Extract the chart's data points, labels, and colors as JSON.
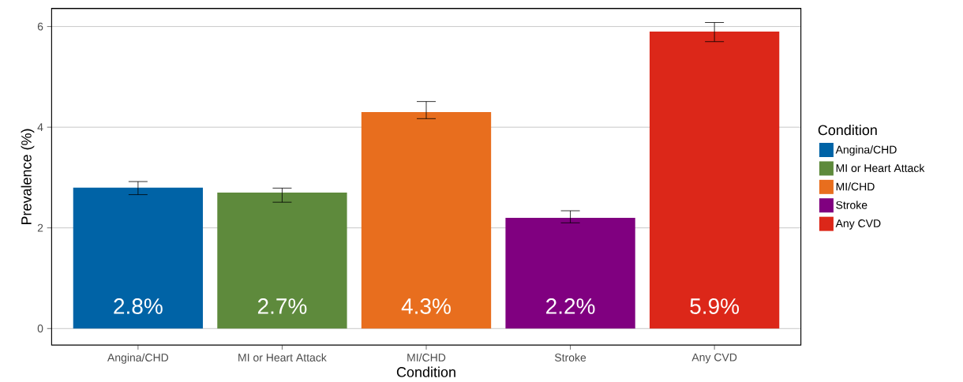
{
  "chart_data": {
    "type": "bar",
    "xlabel": "Condition",
    "ylabel": "Prevalence (%)",
    "legend_title": "Condition",
    "categories": [
      "Angina/CHD",
      "MI or Heart Attack",
      "MI/CHD",
      "Stroke",
      "Any CVD"
    ],
    "series": [
      {
        "name": "Angina/CHD",
        "color": "#0063a6",
        "values": [
          2.8,
          null,
          null,
          null,
          null
        ],
        "errors": [
          [
            2.66,
            2.92
          ],
          null,
          null,
          null,
          null
        ],
        "value_labels": [
          "2.8%",
          null,
          null,
          null,
          null
        ]
      },
      {
        "name": "MI or Heart Attack",
        "color": "#5e8a3c",
        "values": [
          null,
          2.7,
          null,
          null,
          null
        ],
        "errors": [
          null,
          [
            2.51,
            2.79
          ],
          null,
          null,
          null
        ],
        "value_labels": [
          null,
          "2.7%",
          null,
          null,
          null
        ]
      },
      {
        "name": "MI/CHD",
        "color": "#e86e1e",
        "values": [
          null,
          null,
          4.3,
          null,
          null
        ],
        "errors": [
          null,
          null,
          [
            4.17,
            4.51
          ],
          null,
          null
        ],
        "value_labels": [
          null,
          null,
          "4.3%",
          null,
          null
        ]
      },
      {
        "name": "Stroke",
        "color": "#800080",
        "values": [
          null,
          null,
          null,
          2.2,
          null
        ],
        "errors": [
          null,
          null,
          null,
          [
            2.1,
            2.34
          ],
          null
        ],
        "value_labels": [
          null,
          null,
          null,
          "2.2%",
          null
        ]
      },
      {
        "name": "Any CVD",
        "color": "#dc2719",
        "values": [
          null,
          null,
          null,
          null,
          5.9
        ],
        "errors": [
          null,
          null,
          null,
          null,
          [
            5.7,
            6.08
          ]
        ],
        "value_labels": [
          null,
          null,
          null,
          null,
          "5.9%"
        ]
      }
    ],
    "ylim": [
      -0.33,
      6.36
    ],
    "yticks": [
      0,
      2,
      4,
      6
    ],
    "grid": "y",
    "legend": "right"
  }
}
